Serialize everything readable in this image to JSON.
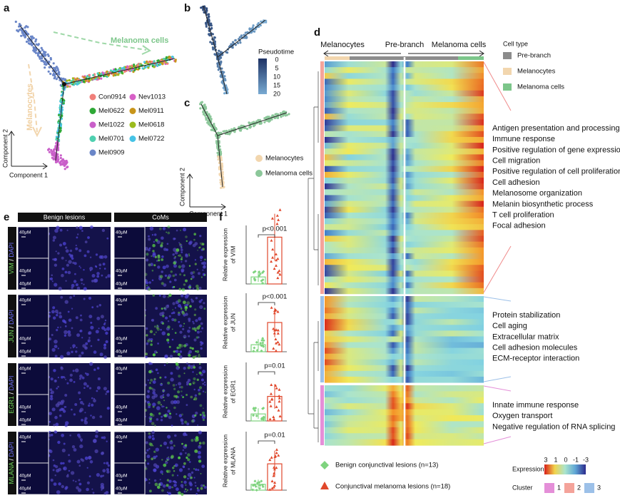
{
  "panels": {
    "a": {
      "label": "a",
      "annotations": [
        "Melanoma cells",
        "Melanocytes"
      ],
      "y_axis": "Component 2",
      "x_axis": "Component 1",
      "legend": [
        {
          "name": "Con0914",
          "color": "#f07f7a"
        },
        {
          "name": "Nev1013",
          "color": "#d75fc6"
        },
        {
          "name": "Mel0622",
          "color": "#2ea836"
        },
        {
          "name": "Mel0911",
          "color": "#c8951a"
        },
        {
          "name": "Mel1022",
          "color": "#c95fc9"
        },
        {
          "name": "Mel0618",
          "color": "#9bbb1d"
        },
        {
          "name": "Mel0701",
          "color": "#4fd0b0"
        },
        {
          "name": "Mel0722",
          "color": "#46c3e6"
        },
        {
          "name": "Mel0909",
          "color": "#6a86c8"
        }
      ]
    },
    "b": {
      "label": "b",
      "colorbar_title": "Pseudotime",
      "colorbar_ticks": [
        0,
        5,
        10,
        15,
        20
      ]
    },
    "c": {
      "label": "c",
      "y_axis": "Component 2",
      "x_axis": "Component 1",
      "legend": [
        {
          "name": "Melanocytes",
          "color": "#f2d6ae"
        },
        {
          "name": "Melanoma cells",
          "color": "#8cc79a"
        }
      ]
    },
    "d": {
      "label": "d",
      "top_labels": [
        "Melanocytes",
        "Pre-branch",
        "Melanoma cells"
      ],
      "cell_type_title": "Cell type",
      "cell_type_legend": [
        {
          "name": "Pre-branch",
          "color": "#8c8c8c"
        },
        {
          "name": "Melanocytes",
          "color": "#f2d6ae"
        },
        {
          "name": "Melanoma cells",
          "color": "#7cc68a"
        }
      ],
      "cluster_terms": [
        [
          "Antigen presentation and processing",
          "Immune response",
          "Positive regulation of gene expression",
          "Cell migration",
          "Positive regulation of cell proliferation",
          "Cell adhesion",
          "Melanosome organization",
          "Melanin biosynthetic process",
          "T cell proliferation",
          "Focal adhesion"
        ],
        [
          "Protein stabilization",
          "Cell aging",
          "Extracellular matrix",
          "Cell adhesion molecules",
          "ECM-receptor interaction"
        ],
        [
          "Innate immune response",
          "Oxygen transport",
          "Negative regulation of RNA splicing"
        ]
      ],
      "expression_title": "Expression",
      "expression_ticks": [
        3,
        1,
        0,
        -1,
        -3
      ],
      "cluster_title": "Cluster",
      "clusters": [
        {
          "name": 1,
          "color": "#e48fd8"
        },
        {
          "name": 2,
          "color": "#f4a39a"
        },
        {
          "name": 3,
          "color": "#9cc0e8"
        }
      ]
    },
    "e": {
      "label": "e",
      "columns": [
        "Benign lesions",
        "CoMs"
      ],
      "rows": [
        [
          "VIM",
          "/",
          "DAPI"
        ],
        [
          "JUN",
          "/",
          "DAPI"
        ],
        [
          "EGR1",
          "/",
          "DAPI"
        ],
        [
          "MLANA",
          "/",
          "DAPI"
        ]
      ],
      "scale": "40μM"
    },
    "f": {
      "label": "f",
      "plots": [
        {
          "ylabel": [
            "Relative expression",
            "of VIM"
          ],
          "p": "p<0.001"
        },
        {
          "ylabel": [
            "Relative expression",
            "of JUN"
          ],
          "p": "p<0.001"
        },
        {
          "ylabel": [
            "Relative expression",
            "of EGR1"
          ],
          "p": "p=0.01"
        },
        {
          "ylabel": [
            "Relative expression",
            "of MLANA"
          ],
          "p": "p=0.01"
        }
      ],
      "legend": [
        {
          "name": "Benign conjunctival lesions (n=13)",
          "color": "#7ed37e"
        },
        {
          "name": "Conjunctival melanoma lesions (n=18)",
          "color": "#e0472b"
        }
      ]
    }
  }
}
